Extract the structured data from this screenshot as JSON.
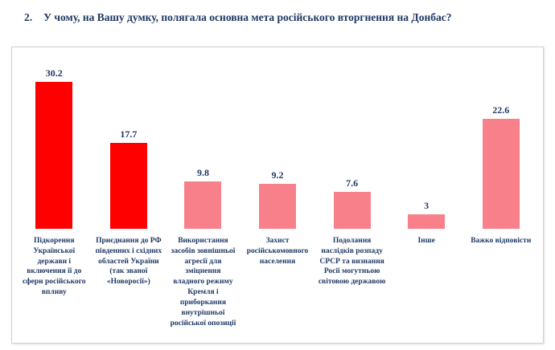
{
  "page": {
    "title_number": "2.",
    "title_text": "У чому, на Вашу думку, полягала основна мета російського вторгнення  на Донбас?"
  },
  "colors": {
    "bar_red": "#fe0000",
    "bar_pink": "#f8808a",
    "label_navy": "#1f3864"
  },
  "chart_data": {
    "type": "bar",
    "title": "У чому, на Вашу думку, полягала основна мета російського вторгнення на Донбас?",
    "categories": [
      "Підкорення Української держави і включення її до сфери російського впливу",
      "Приєднання до РФ південних і східних областей України (так званої «Новоросії»)",
      "Використання засобів зовнішньої агресії для зміцнення владного режиму Кремля і приборкання внутрішньої російської опозиції",
      "Захист російськомовного населення",
      "Подолання наслідків розпаду СРСР та визнання Росії могутньою світовою державою",
      "Інше",
      "Важко відповісти"
    ],
    "values": [
      30.2,
      17.7,
      9.8,
      9.2,
      7.6,
      3,
      22.6
    ],
    "value_labels": [
      "30.2",
      "17.7",
      "9.8",
      "9.2",
      "7.6",
      "3",
      "22.6"
    ],
    "bar_color_keys": [
      "bar_red",
      "bar_red",
      "bar_pink",
      "bar_pink",
      "bar_pink",
      "bar_pink",
      "bar_pink"
    ],
    "xlabel": "",
    "ylabel": "",
    "ylim": [
      0,
      32
    ],
    "grid": false,
    "legend": "none"
  }
}
